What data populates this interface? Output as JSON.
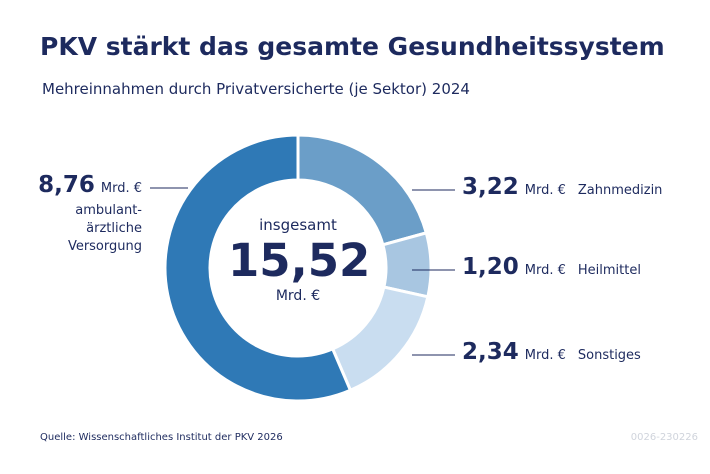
{
  "chart_data": {
    "type": "donut",
    "title": "PKV stärkt das gesamte Gesundheitssystem",
    "subtitle": "Mehreinnahmen durch Privatversicherte (je Sektor) 2024",
    "categories": [
      "Zahnmedizin",
      "Heilmittel",
      "Sonstiges",
      "ambulant-ärztliche Versorgung"
    ],
    "values": [
      3.22,
      1.2,
      2.34,
      8.76
    ],
    "value_labels": [
      "3,22",
      "1,20",
      "2,34",
      "8,76"
    ],
    "colors": [
      "#6b9ec8",
      "#a8c6e1",
      "#c9ddf0",
      "#2f79b6"
    ],
    "unit": "Mrd. €",
    "total_caption": "insgesamt",
    "total_label": "15,52",
    "source": "Quelle: Wissenschaftliches Institut der PKV 2026",
    "code": "0026-230226"
  }
}
